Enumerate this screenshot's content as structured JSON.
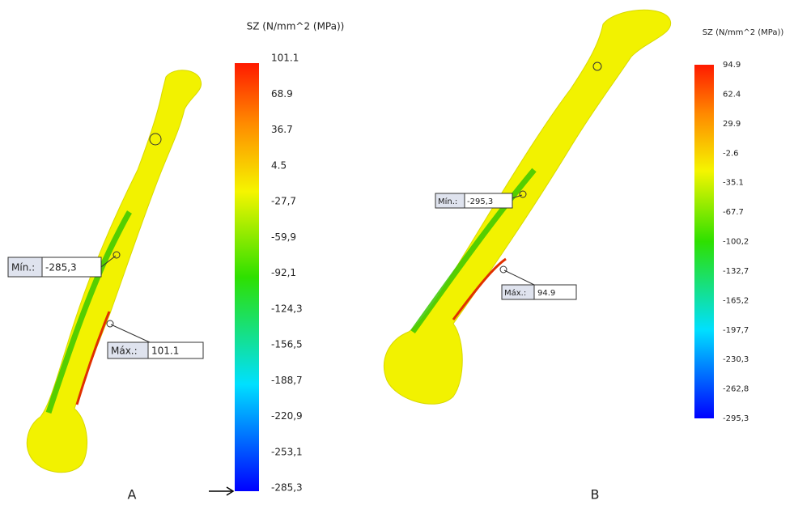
{
  "panels": [
    {
      "label": "A",
      "legend_title": "SZ (N/mm^2 (MPa))",
      "ticks": [
        "101.1",
        "68.9",
        "36.7",
        "4.5",
        "-27,7",
        "-59,9",
        "-92,1",
        "-124,3",
        "-156,5",
        "-188,7",
        "-220,9",
        "-253,1",
        "-285,3"
      ],
      "min_label": "Mín.:",
      "min_value": "-285,3",
      "max_label": "Máx.:",
      "max_value": "101.1"
    },
    {
      "label": "B",
      "legend_title": "SZ (N/mm^2 (MPa))",
      "ticks": [
        "94.9",
        "62.4",
        "29.9",
        "-2.6",
        "-35.1",
        "-67.7",
        "-100,2",
        "-132,7",
        "-165,2",
        "-197,7",
        "-230,3",
        "-262,8",
        "-295,3"
      ],
      "min_label": "Mín.:",
      "min_value": "-295,3",
      "max_label": "Máx.:",
      "max_value": "94.9"
    }
  ]
}
